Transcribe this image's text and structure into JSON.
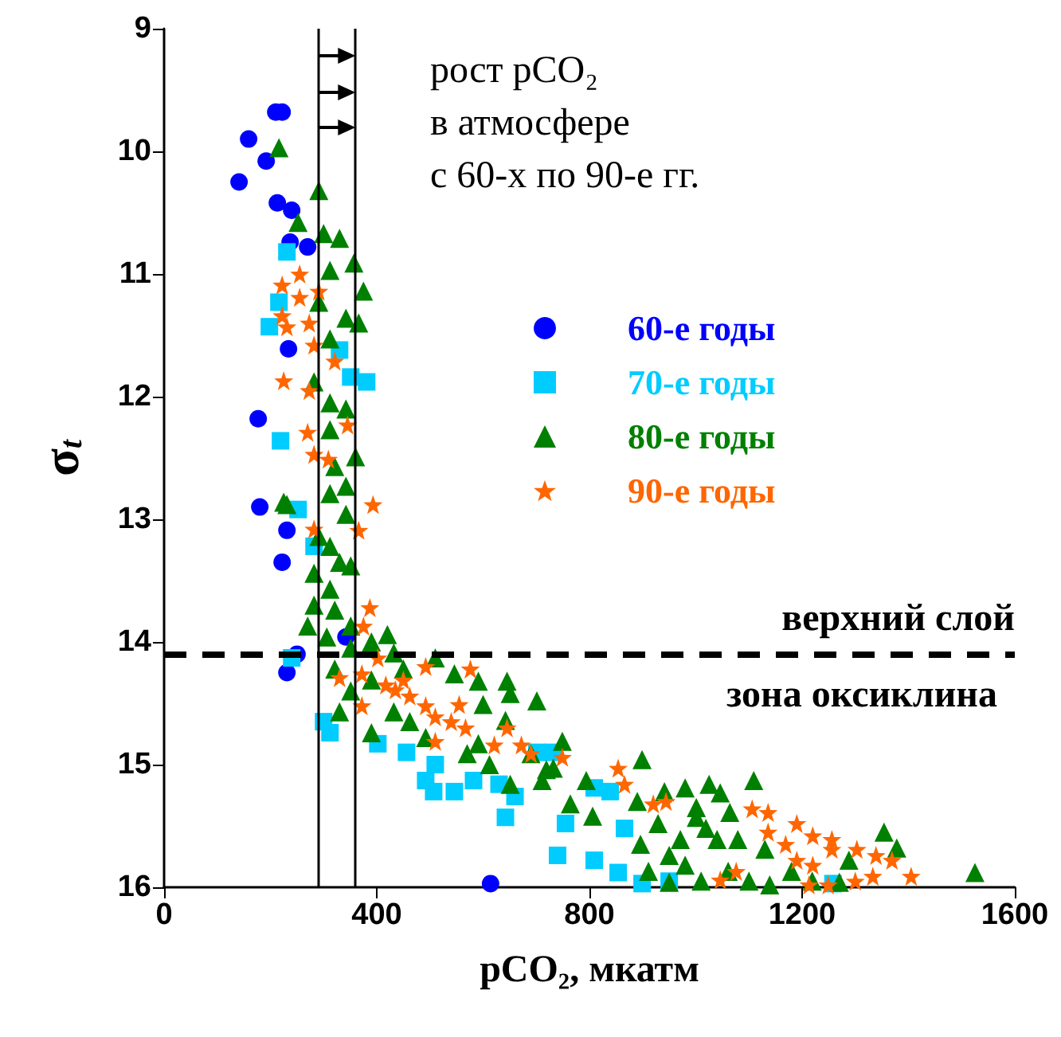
{
  "chart_data": {
    "type": "scatter",
    "xlabel": "pCO₂, мкатм",
    "ylabel": "σ$_{t}$",
    "xlim": [
      0,
      1600
    ],
    "xticks": [
      0,
      400,
      800,
      1200,
      1600
    ],
    "ylim": [
      16,
      9
    ],
    "yticks": [
      9,
      10,
      11,
      12,
      13,
      14,
      15,
      16
    ],
    "grid": false,
    "legend": "top right",
    "annotations": [
      "рост pCO₂\nв атмосфере\nс 60-х по 90-е гг.",
      "зона оксиклина"
    ],
    "ref_lines": [
      {
        "axis": "y",
        "value": 14.1,
        "label": "верхний слой",
        "color": "#000000",
        "line_style": "dashed"
      },
      {
        "axis": "x",
        "value": 290,
        "label": null,
        "color": "#000000",
        "line_style": "solid"
      },
      {
        "axis": "x",
        "value": 360,
        "label": null,
        "color": "#000000",
        "line_style": "solid"
      }
    ],
    "series": [
      {
        "name": "60-е годы",
        "color": "#0000ff",
        "marker": "circle",
        "x": [
          210,
          222,
          159,
          192,
          141,
          213,
          240,
          237,
          270,
          234,
          177,
          180,
          231,
          222,
          342,
          231,
          250,
          614
        ],
        "values": [
          9.68,
          9.68,
          9.9,
          10.08,
          10.25,
          10.42,
          10.48,
          10.74,
          10.78,
          11.61,
          12.18,
          12.9,
          13.09,
          13.35,
          13.96,
          14.25,
          14.1,
          15.97
        ]
      },
      {
        "name": "70-е годы",
        "color": "#00ccff",
        "marker": "square",
        "x": [
          231,
          216,
          198,
          330,
          351,
          381,
          219,
          252,
          282,
          240,
          300,
          312,
          402,
          456,
          510,
          492,
          507,
          546,
          582,
          630,
          660,
          642,
          732,
          755,
          740,
          809,
          854,
          899,
          839,
          866,
          950,
          1258,
          701,
          809
        ],
        "values": [
          10.82,
          11.23,
          11.43,
          11.62,
          11.84,
          11.88,
          12.36,
          12.92,
          13.22,
          14.13,
          14.65,
          14.74,
          14.83,
          14.9,
          15.0,
          15.13,
          15.22,
          15.22,
          15.13,
          15.16,
          15.26,
          15.43,
          14.9,
          15.48,
          15.74,
          15.78,
          15.88,
          15.97,
          15.22,
          15.52,
          15.95,
          15.97,
          14.9,
          15.19
        ]
      },
      {
        "name": "80-е годы",
        "color": "#008000",
        "marker": "triangle",
        "x": [
          216,
          291,
          252,
          300,
          330,
          357,
          375,
          312,
          291,
          342,
          366,
          312,
          282,
          312,
          342,
          312,
          360,
          321,
          225,
          231,
          342,
          312,
          342,
          291,
          312,
          330,
          282,
          351,
          312,
          282,
          321,
          270,
          306,
          351,
          390,
          420,
          351,
          321,
          390,
          432,
          450,
          510,
          546,
          591,
          645,
          651,
          701,
          600,
          642,
          591,
          570,
          462,
          492,
          390,
          432,
          330,
          351,
          612,
          651,
          690,
          711,
          732,
          749,
          719,
          794,
          764,
          806,
          899,
          890,
          941,
          980,
          1025,
          1046,
          1109,
          1064,
          1001,
          929,
          896,
          971,
          1019,
          1079,
          1130,
          980,
          1010,
          1061,
          1100,
          1139,
          911,
          950,
          1180,
          1219,
          1270,
          1288,
          1354,
          1378,
          1525,
          1001,
          1040,
          950
        ],
        "values": [
          9.97,
          10.32,
          10.58,
          10.67,
          10.71,
          10.91,
          11.14,
          10.97,
          11.23,
          11.36,
          11.4,
          11.53,
          11.88,
          12.05,
          12.1,
          12.27,
          12.49,
          12.57,
          12.86,
          12.88,
          12.73,
          12.79,
          12.96,
          13.14,
          13.22,
          13.35,
          13.44,
          13.38,
          13.57,
          13.7,
          13.74,
          13.87,
          13.96,
          13.87,
          14.0,
          13.94,
          14.05,
          14.22,
          14.31,
          14.09,
          14.22,
          14.13,
          14.26,
          14.32,
          14.32,
          14.42,
          14.48,
          14.51,
          14.64,
          14.83,
          14.91,
          14.65,
          14.78,
          14.74,
          14.57,
          14.57,
          14.4,
          15.0,
          15.16,
          14.91,
          15.13,
          15.03,
          14.81,
          15.04,
          15.13,
          15.32,
          15.42,
          14.96,
          15.3,
          15.22,
          15.19,
          15.16,
          15.23,
          15.13,
          15.39,
          15.43,
          15.48,
          15.65,
          15.61,
          15.52,
          15.61,
          15.69,
          15.82,
          15.95,
          15.87,
          15.95,
          15.98,
          15.87,
          15.96,
          15.87,
          15.95,
          15.96,
          15.78,
          15.55,
          15.68,
          15.88,
          15.35,
          15.61,
          15.74
        ]
      },
      {
        "name": "90-е годы",
        "color": "#ff6600",
        "marker": "star",
        "x": [
          222,
          255,
          291,
          255,
          222,
          231,
          273,
          282,
          321,
          225,
          273,
          345,
          270,
          282,
          309,
          393,
          282,
          366,
          387,
          375,
          402,
          330,
          372,
          417,
          450,
          492,
          576,
          372,
          435,
          462,
          492,
          510,
          540,
          555,
          567,
          510,
          621,
          645,
          672,
          690,
          749,
          854,
          866,
          920,
          944,
          1106,
          1136,
          1136,
          1190,
          1169,
          1220,
          1256,
          1190,
          1220,
          1256,
          1303,
          1339,
          1369,
          1333,
          1405,
          1300,
          1249,
          1213,
          1076,
          1046
        ],
        "values": [
          11.09,
          11.0,
          11.14,
          11.19,
          11.34,
          11.43,
          11.4,
          11.58,
          11.71,
          11.87,
          11.95,
          12.23,
          12.29,
          12.47,
          12.51,
          12.88,
          13.08,
          13.09,
          13.72,
          13.87,
          14.13,
          14.29,
          14.26,
          14.35,
          14.31,
          14.2,
          14.22,
          14.52,
          14.39,
          14.44,
          14.52,
          14.61,
          14.65,
          14.51,
          14.7,
          14.81,
          14.84,
          14.7,
          14.84,
          14.91,
          14.94,
          15.03,
          15.16,
          15.32,
          15.3,
          15.36,
          15.39,
          15.55,
          15.48,
          15.65,
          15.58,
          15.61,
          15.78,
          15.82,
          15.69,
          15.69,
          15.74,
          15.78,
          15.91,
          15.91,
          15.95,
          15.98,
          15.98,
          15.87,
          15.94
        ]
      }
    ]
  }
}
